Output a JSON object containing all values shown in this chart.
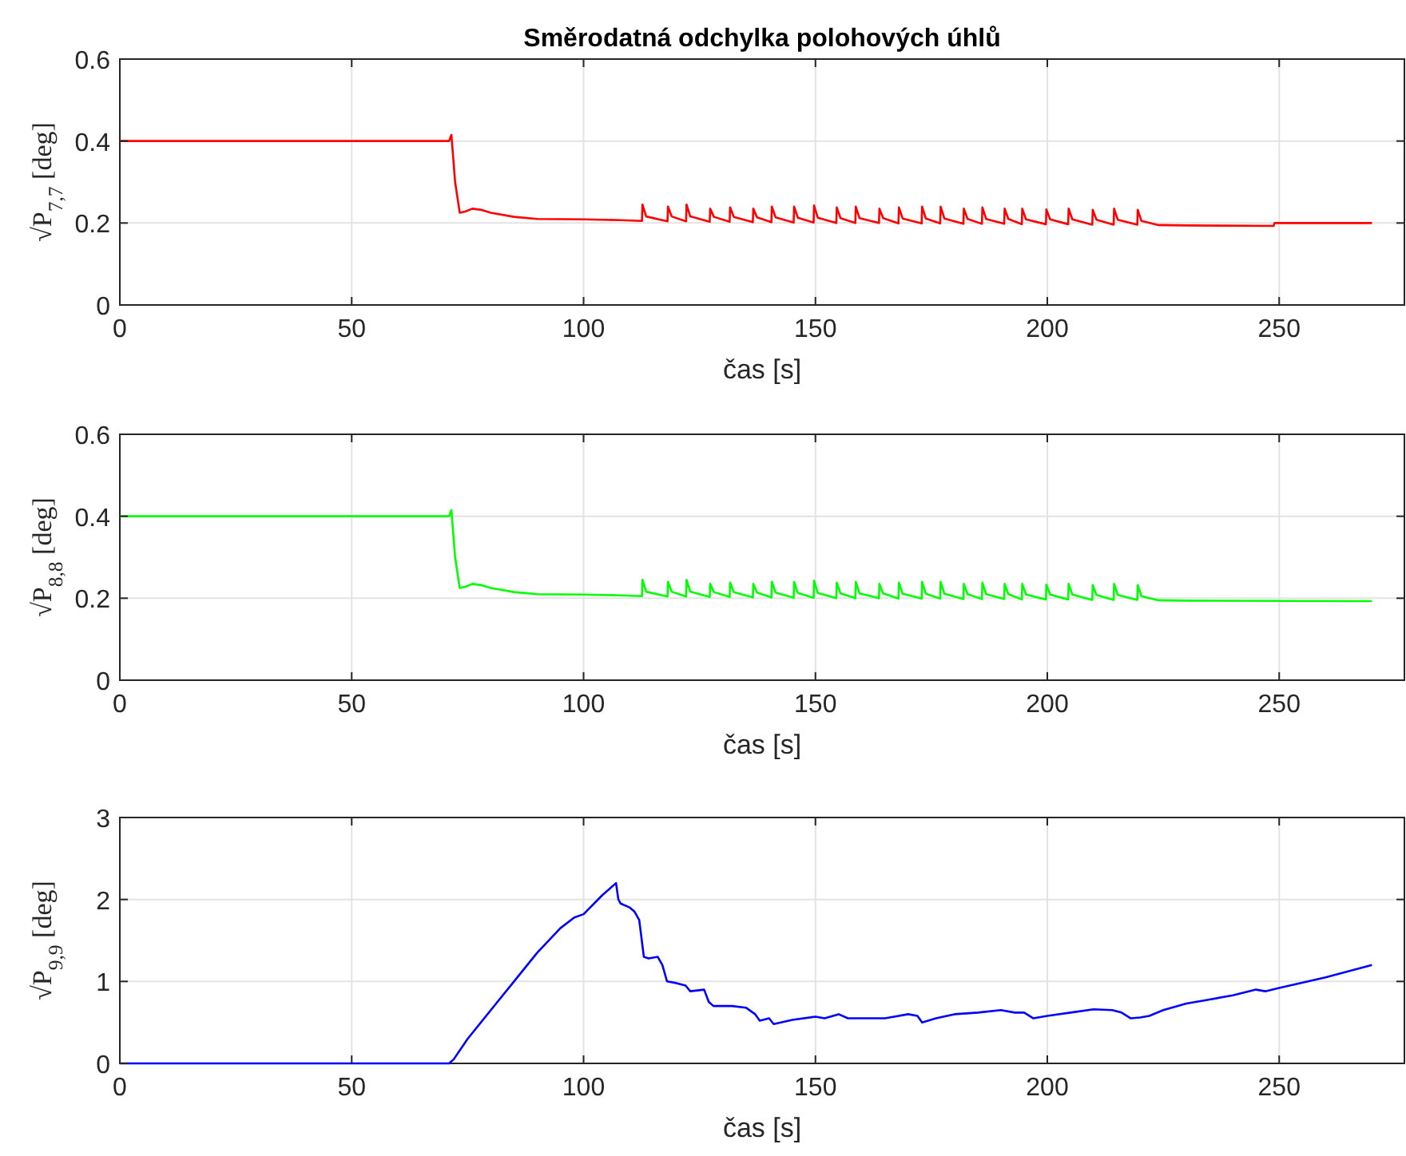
{
  "chart_data": [
    {
      "type": "line",
      "title": "Směrodatná odchylka polohových úhlů",
      "xlabel": "čas [s]",
      "ylabel": "√P$_{7,7}$ [deg]",
      "xlim": [
        0,
        277
      ],
      "xticks": [
        0,
        50,
        100,
        150,
        200,
        250
      ],
      "ylim": [
        0,
        0.6
      ],
      "yticks": [
        0,
        0.2,
        0.4,
        0.6
      ],
      "grid": true,
      "series": [
        {
          "color": "#ff0000",
          "x": [
            0,
            71,
            71.5,
            72.3,
            73.3,
            74.5,
            76,
            78,
            80,
            85,
            90,
            100,
            108,
            112.6,
            112.7,
            113.5,
            118.1,
            118.2,
            119,
            122.1,
            122.2,
            123,
            127.2,
            127.3,
            128.1,
            131.5,
            131.6,
            132.4,
            136.5,
            136.6,
            137.4,
            140.5,
            140.6,
            141.4,
            145.3,
            145.4,
            146.2,
            149.6,
            149.7,
            150.5,
            154.5,
            154.6,
            155.4,
            158.6,
            158.7,
            159.5,
            163.7,
            163.8,
            164.6,
            167.9,
            168,
            168.8,
            172.9,
            173,
            173.8,
            176.9,
            177,
            177.8,
            181.9,
            182,
            182.8,
            185.9,
            186,
            186.8,
            190.7,
            190.8,
            191.6,
            194.5,
            194.6,
            195.4,
            199.7,
            199.8,
            200.6,
            204.5,
            204.6,
            205.4,
            209.7,
            209.8,
            210.6,
            214.3,
            214.4,
            215.2,
            219.4,
            219.5,
            220.3,
            224,
            230,
            248.8,
            249,
            270
          ],
          "values": [
            0.4,
            0.4,
            0.415,
            0.3,
            0.225,
            0.228,
            0.235,
            0.232,
            0.225,
            0.215,
            0.21,
            0.209,
            0.207,
            0.205,
            0.245,
            0.216,
            0.204,
            0.24,
            0.216,
            0.204,
            0.245,
            0.216,
            0.203,
            0.235,
            0.215,
            0.203,
            0.238,
            0.215,
            0.202,
            0.235,
            0.214,
            0.202,
            0.24,
            0.214,
            0.201,
            0.24,
            0.213,
            0.201,
            0.243,
            0.213,
            0.2,
            0.238,
            0.212,
            0.2,
            0.24,
            0.212,
            0.2,
            0.235,
            0.212,
            0.199,
            0.238,
            0.211,
            0.199,
            0.24,
            0.211,
            0.199,
            0.24,
            0.211,
            0.198,
            0.235,
            0.21,
            0.198,
            0.238,
            0.21,
            0.198,
            0.235,
            0.21,
            0.197,
            0.235,
            0.209,
            0.197,
            0.233,
            0.209,
            0.197,
            0.235,
            0.209,
            0.196,
            0.232,
            0.208,
            0.196,
            0.235,
            0.208,
            0.196,
            0.232,
            0.205,
            0.195,
            0.194,
            0.193,
            0.2,
            0.2
          ]
        }
      ]
    },
    {
      "type": "line",
      "xlabel": "čas [s]",
      "ylabel": "√P$_{8,8}$ [deg]",
      "xlim": [
        0,
        277
      ],
      "xticks": [
        0,
        50,
        100,
        150,
        200,
        250
      ],
      "ylim": [
        0,
        0.6
      ],
      "yticks": [
        0,
        0.2,
        0.4,
        0.6
      ],
      "grid": true,
      "series": [
        {
          "color": "#00ff00",
          "x": [
            0,
            71,
            71.5,
            72.3,
            73.3,
            74.5,
            76,
            78,
            80,
            85,
            90,
            100,
            108,
            112.6,
            112.7,
            113.5,
            118.1,
            118.2,
            119,
            122.1,
            122.2,
            123,
            127.2,
            127.3,
            128.1,
            131.5,
            131.6,
            132.4,
            136.5,
            136.6,
            137.4,
            140.5,
            140.6,
            141.4,
            145.3,
            145.4,
            146.2,
            149.6,
            149.7,
            150.5,
            154.5,
            154.6,
            155.4,
            158.6,
            158.7,
            159.5,
            163.7,
            163.8,
            164.6,
            167.9,
            168,
            168.8,
            172.9,
            173,
            173.8,
            176.9,
            177,
            177.8,
            181.9,
            182,
            182.8,
            185.9,
            186,
            186.8,
            190.7,
            190.8,
            191.6,
            194.5,
            194.6,
            195.4,
            199.7,
            199.8,
            200.6,
            204.5,
            204.6,
            205.4,
            209.7,
            209.8,
            210.6,
            214.3,
            214.4,
            215.2,
            219.4,
            219.5,
            220.3,
            224,
            230,
            270
          ],
          "values": [
            0.4,
            0.4,
            0.415,
            0.3,
            0.225,
            0.228,
            0.235,
            0.232,
            0.225,
            0.215,
            0.21,
            0.209,
            0.207,
            0.205,
            0.245,
            0.216,
            0.204,
            0.24,
            0.216,
            0.204,
            0.245,
            0.216,
            0.203,
            0.235,
            0.215,
            0.203,
            0.238,
            0.215,
            0.202,
            0.235,
            0.214,
            0.202,
            0.24,
            0.214,
            0.201,
            0.24,
            0.213,
            0.201,
            0.243,
            0.213,
            0.2,
            0.238,
            0.212,
            0.2,
            0.24,
            0.212,
            0.2,
            0.235,
            0.212,
            0.199,
            0.238,
            0.211,
            0.199,
            0.24,
            0.211,
            0.199,
            0.24,
            0.211,
            0.198,
            0.235,
            0.21,
            0.198,
            0.238,
            0.21,
            0.198,
            0.235,
            0.21,
            0.197,
            0.235,
            0.209,
            0.197,
            0.233,
            0.209,
            0.197,
            0.235,
            0.209,
            0.196,
            0.232,
            0.208,
            0.196,
            0.235,
            0.208,
            0.196,
            0.232,
            0.205,
            0.195,
            0.194,
            0.193
          ]
        }
      ]
    },
    {
      "type": "line",
      "xlabel": "čas [s]",
      "ylabel": "√P$_{9,9}$ [deg]",
      "xlim": [
        0,
        277
      ],
      "xticks": [
        0,
        50,
        100,
        150,
        200,
        250
      ],
      "ylim": [
        0,
        3
      ],
      "yticks": [
        0,
        1,
        2,
        3
      ],
      "grid": true,
      "series": [
        {
          "color": "#0000ff",
          "x": [
            0,
            71,
            72,
            75,
            80,
            85,
            90,
            95,
            98,
            100,
            104,
            107,
            107.5,
            108,
            110,
            111,
            112,
            113,
            114,
            116,
            117,
            118,
            120,
            122,
            123,
            126,
            127,
            128,
            132,
            135,
            137,
            138,
            140,
            141,
            145,
            150,
            152,
            155,
            157,
            160,
            165,
            170,
            172,
            173,
            176,
            180,
            185,
            190,
            193,
            195,
            197,
            200,
            205,
            210,
            214,
            216,
            218,
            220,
            222,
            225,
            230,
            235,
            240,
            245,
            247,
            250,
            260,
            270
          ],
          "values": [
            0,
            0,
            0.05,
            0.3,
            0.65,
            1.0,
            1.35,
            1.65,
            1.78,
            1.82,
            2.05,
            2.2,
            2.0,
            1.95,
            1.9,
            1.85,
            1.75,
            1.3,
            1.28,
            1.3,
            1.2,
            1.0,
            0.98,
            0.95,
            0.88,
            0.9,
            0.75,
            0.7,
            0.7,
            0.68,
            0.6,
            0.52,
            0.55,
            0.48,
            0.53,
            0.57,
            0.55,
            0.6,
            0.55,
            0.55,
            0.55,
            0.6,
            0.58,
            0.5,
            0.55,
            0.6,
            0.62,
            0.65,
            0.62,
            0.62,
            0.55,
            0.58,
            0.62,
            0.66,
            0.65,
            0.62,
            0.55,
            0.56,
            0.58,
            0.65,
            0.73,
            0.78,
            0.83,
            0.9,
            0.88,
            0.92,
            1.05,
            1.2
          ]
        }
      ]
    }
  ]
}
